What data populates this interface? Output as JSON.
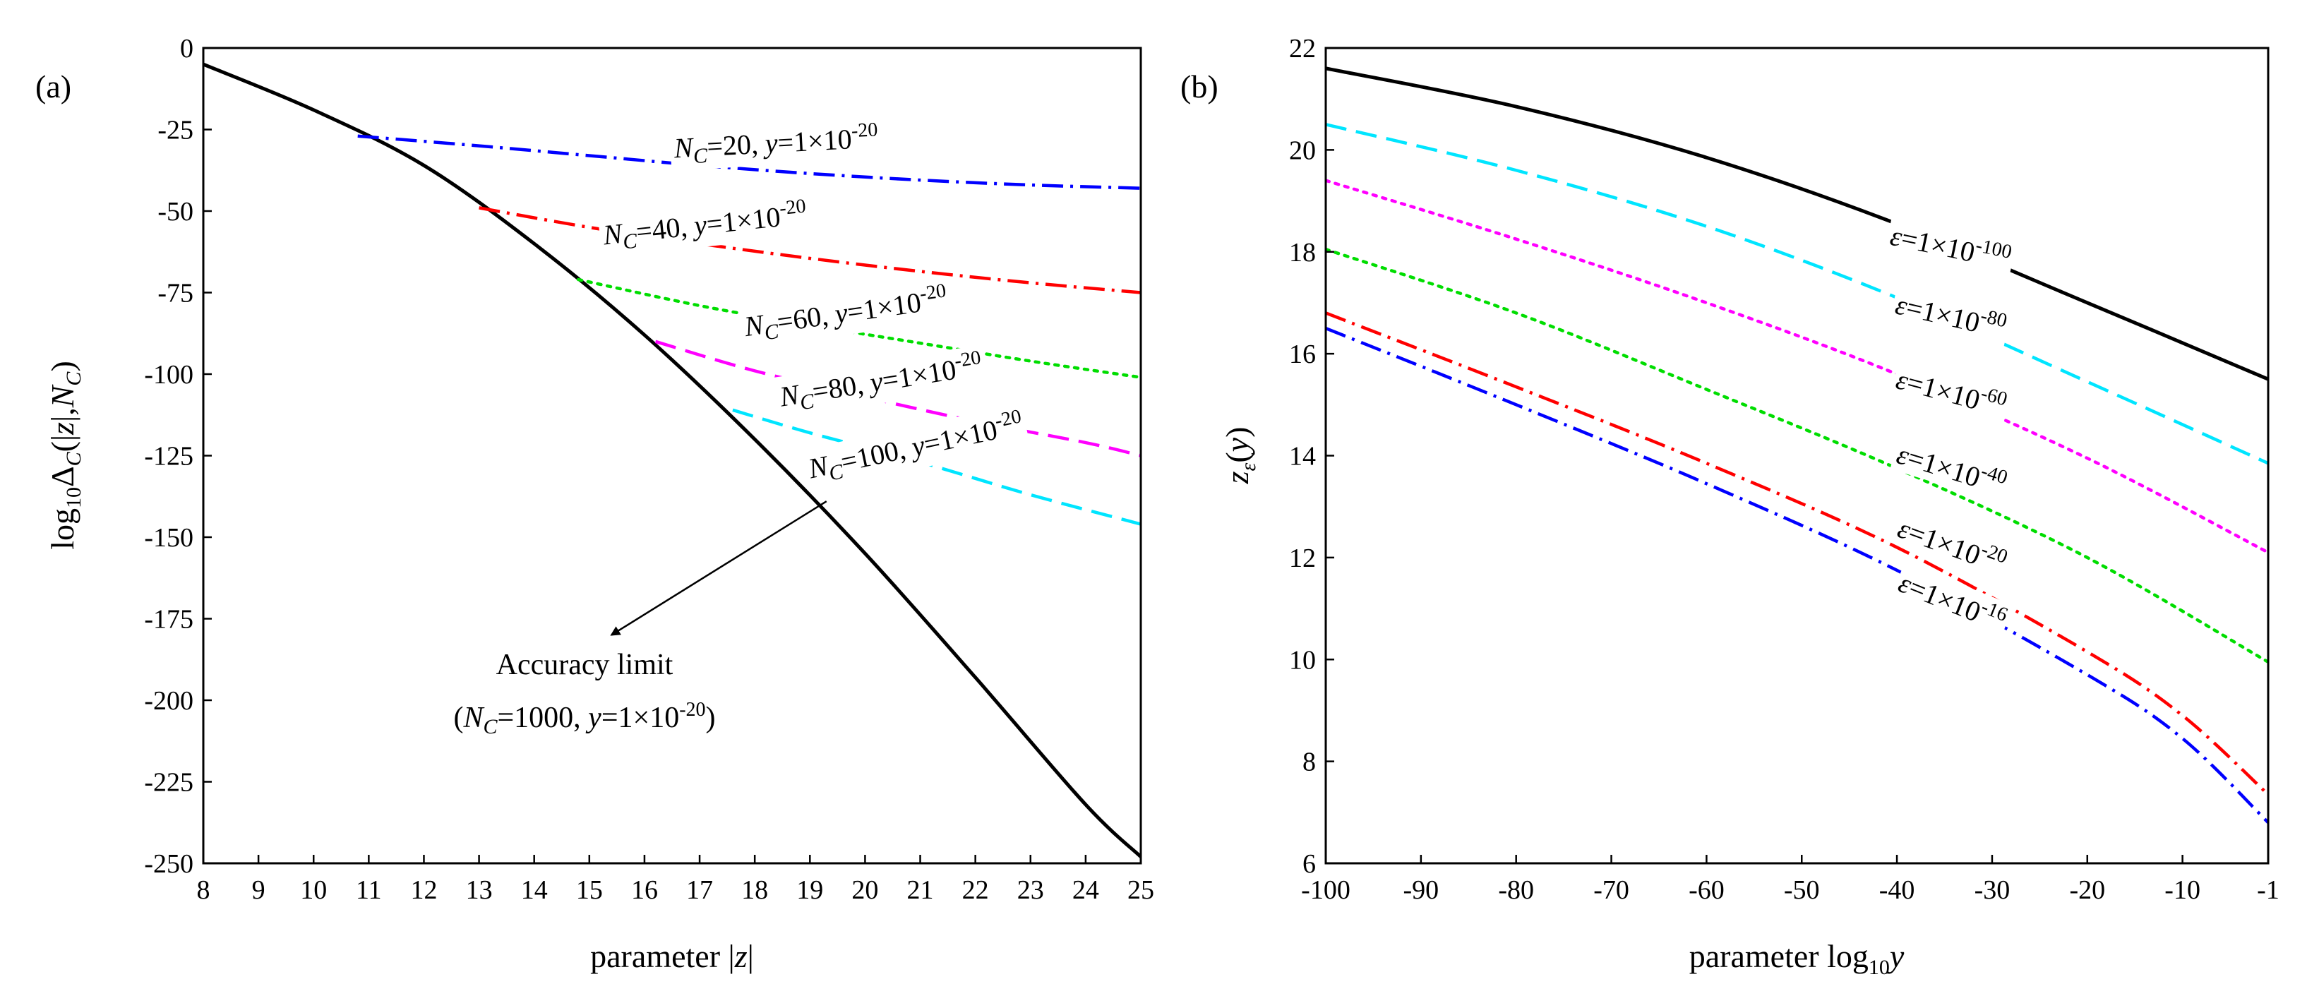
{
  "chart_data": [
    {
      "panel": "(a)",
      "type": "line",
      "xlabel": "parameter |z|",
      "ylabel": "log10ΔC(|z|,NC)",
      "xlim": [
        8,
        25
      ],
      "ylim": [
        -250,
        0
      ],
      "xticks": [
        "8",
        "9",
        "10",
        "11",
        "12",
        "13",
        "14",
        "15",
        "16",
        "17",
        "18",
        "19",
        "20",
        "21",
        "22",
        "23",
        "24",
        "25"
      ],
      "yticks": [
        "0",
        "-25",
        "-50",
        "-75",
        "-100",
        "-125",
        "-150",
        "-175",
        "-200",
        "-225",
        "-250"
      ],
      "series": [
        {
          "name": "Accuracy limit",
          "color": "#000000",
          "style": "solid",
          "x": [
            8,
            10,
            12,
            14,
            16,
            18,
            20,
            22,
            24,
            25
          ],
          "y": [
            -5,
            -19,
            -36,
            -60,
            -88,
            -120,
            -155,
            -193,
            -232,
            -248
          ]
        },
        {
          "name": "NC=20",
          "color": "#0000ff",
          "style": "dashdot",
          "x": [
            10.8,
            13,
            15,
            17,
            19,
            21,
            23,
            25
          ],
          "y": [
            -27,
            -30,
            -33,
            -36,
            -38.5,
            -40.5,
            -42,
            -43
          ]
        },
        {
          "name": "NC=40",
          "color": "#ff0000",
          "style": "dashdot",
          "x": [
            13,
            15,
            17,
            19,
            21,
            23,
            25
          ],
          "y": [
            -49,
            -55,
            -60,
            -64.5,
            -68.5,
            -72,
            -75
          ]
        },
        {
          "name": "NC=60",
          "color": "#00dd00",
          "style": "dotted",
          "x": [
            14.8,
            17,
            19,
            21,
            23,
            25
          ],
          "y": [
            -71,
            -79,
            -85,
            -90.5,
            -96,
            -101
          ]
        },
        {
          "name": "NC=80",
          "color": "#ff00ff",
          "style": "dashed",
          "x": [
            16.2,
            18,
            20,
            22,
            24,
            25
          ],
          "y": [
            -90,
            -99,
            -107,
            -114.5,
            -121,
            -125
          ]
        },
        {
          "name": "NC=100",
          "color": "#00e5ff",
          "style": "dashed",
          "x": [
            17.6,
            19,
            21,
            23,
            25
          ],
          "y": [
            -111,
            -118,
            -127,
            -137,
            -146
          ]
        }
      ],
      "curve_labels": [
        {
          "series": "NC=20",
          "parts": [
            "N",
            "C",
            "=20, ",
            "y",
            "=1×10",
            "-20"
          ]
        },
        {
          "series": "NC=40",
          "parts": [
            "N",
            "C",
            "=40, ",
            "y",
            "=1×10",
            "-20"
          ]
        },
        {
          "series": "NC=60",
          "parts": [
            "N",
            "C",
            "=60, ",
            "y",
            "=1×10",
            "-20"
          ]
        },
        {
          "series": "NC=80",
          "parts": [
            "N",
            "C",
            "=80, ",
            "y",
            "=1×10",
            "-20"
          ]
        },
        {
          "series": "NC=100",
          "parts": [
            "N",
            "C",
            "=100, ",
            "y",
            "=1×10",
            "-20"
          ]
        }
      ],
      "annotation": {
        "line1": "Accuracy limit",
        "line2_parts": [
          "(",
          "N",
          "C",
          "=1000, ",
          "y",
          "=1×10",
          "-20",
          ")"
        ],
        "arrow_from": [
          19.3,
          -139
        ],
        "arrow_to": [
          15.4,
          -180
        ]
      }
    },
    {
      "panel": "(b)",
      "type": "line",
      "xlabel": "parameter log10y",
      "ylabel": "zε(y)",
      "xlim": [
        -100,
        -1
      ],
      "ylim": [
        6,
        22
      ],
      "xticks": [
        "-100",
        "-90",
        "-80",
        "-70",
        "-60",
        "-50",
        "-40",
        "-30",
        "-20",
        "-10",
        "-1"
      ],
      "yticks": [
        "6",
        "8",
        "10",
        "12",
        "14",
        "16",
        "18",
        "20",
        "22"
      ],
      "series": [
        {
          "name": "ε=1×10-100",
          "color": "#000000",
          "style": "solid",
          "x": [
            -100,
            -80,
            -60,
            -40,
            -20,
            -1
          ],
          "y": [
            21.6,
            20.85,
            19.85,
            18.55,
            17.0,
            15.5
          ]
        },
        {
          "name": "ε=1×10-80",
          "color": "#00e5ff",
          "style": "dashed",
          "x": [
            -100,
            -80,
            -60,
            -40,
            -20,
            -1
          ],
          "y": [
            20.5,
            19.6,
            18.5,
            17.1,
            15.45,
            13.85
          ]
        },
        {
          "name": "ε=1×10-60",
          "color": "#ff00ff",
          "style": "dotted",
          "x": [
            -100,
            -80,
            -60,
            -40,
            -20,
            -1
          ],
          "y": [
            19.4,
            18.25,
            17.0,
            15.6,
            13.95,
            12.1
          ]
        },
        {
          "name": "ε=1×10-40",
          "color": "#00dd00",
          "style": "dotted",
          "x": [
            -100,
            -80,
            -60,
            -40,
            -20,
            -1
          ],
          "y": [
            18.05,
            16.8,
            15.3,
            13.75,
            12.0,
            9.95
          ]
        },
        {
          "name": "ε=1×10-20",
          "color": "#ff0000",
          "style": "dashdot",
          "x": [
            -100,
            -80,
            -60,
            -40,
            -20,
            -10,
            -1
          ],
          "y": [
            16.8,
            15.35,
            13.85,
            12.2,
            10.15,
            8.9,
            7.35
          ]
        },
        {
          "name": "ε=1×10-16",
          "color": "#0000ff",
          "style": "dashdot",
          "x": [
            -100,
            -80,
            -60,
            -40,
            -20,
            -10,
            -1
          ],
          "y": [
            16.5,
            15.0,
            13.45,
            11.75,
            9.7,
            8.45,
            6.8
          ]
        }
      ],
      "curve_labels": [
        {
          "series": "ε=1×10-100",
          "parts": [
            "ε",
            "=1×10",
            "-100"
          ]
        },
        {
          "series": "ε=1×10-80",
          "parts": [
            "ε",
            "=1×10",
            "-80"
          ]
        },
        {
          "series": "ε=1×10-60",
          "parts": [
            "ε",
            "=1×10",
            "-60"
          ]
        },
        {
          "series": "ε=1×10-40",
          "parts": [
            "ε",
            "=1×10",
            "-40"
          ]
        },
        {
          "series": "ε=1×10-20",
          "parts": [
            "ε",
            "=1×10",
            "-20"
          ]
        },
        {
          "series": "ε=1×10-16",
          "parts": [
            "ε",
            "=1×10",
            "-16"
          ]
        }
      ]
    }
  ]
}
